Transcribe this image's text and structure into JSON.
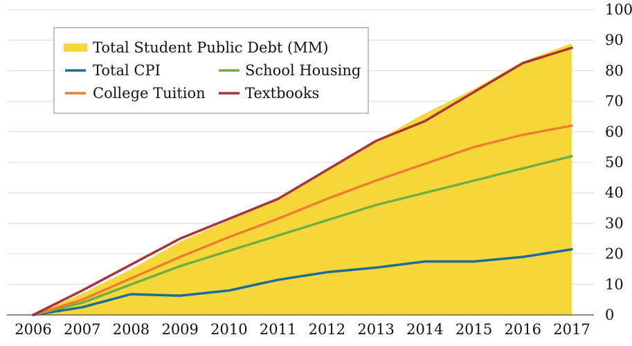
{
  "chart_data": {
    "type": "area",
    "x": [
      2006,
      2007,
      2008,
      2009,
      2010,
      2011,
      2012,
      2013,
      2014,
      2015,
      2016,
      2017
    ],
    "x_tick_labels": [
      "2006",
      "2007",
      "2008",
      "2009",
      "2010",
      "2011",
      "2012",
      "2013",
      "2014",
      "2015",
      "2016",
      "2017"
    ],
    "y_tick_labels": [
      "0",
      "10",
      "20",
      "30",
      "40",
      "50",
      "60",
      "70",
      "80",
      "90",
      "100"
    ],
    "ylim": [
      0,
      100
    ],
    "grid": true,
    "legend_position": "top-left",
    "area_series": {
      "name": "Total Student Public Debt (MM)",
      "color": "#f6d73a",
      "values": [
        0,
        7,
        15,
        24,
        31,
        38,
        48,
        57,
        66,
        74,
        83,
        89
      ]
    },
    "series": [
      {
        "name": "Total CPI",
        "color": "#1b6c9c",
        "values": [
          0,
          2.5,
          6.8,
          6.3,
          8,
          11.5,
          14,
          15.5,
          17.5,
          17.5,
          19,
          21.5
        ]
      },
      {
        "name": "School Housing",
        "color": "#70ad47",
        "values": [
          0,
          4,
          10,
          16,
          21,
          26,
          31,
          36,
          40,
          44,
          48,
          52
        ]
      },
      {
        "name": "College Tuition",
        "color": "#ed7d31",
        "values": [
          0,
          5,
          12,
          19,
          25.5,
          31.5,
          38,
          44,
          49.5,
          55,
          59,
          62
        ]
      },
      {
        "name": "Textbooks",
        "color": "#a8343a",
        "values": [
          0,
          8,
          16.5,
          25,
          31.5,
          38,
          47.5,
          57,
          63.5,
          73,
          82.5,
          87.5
        ]
      }
    ]
  }
}
